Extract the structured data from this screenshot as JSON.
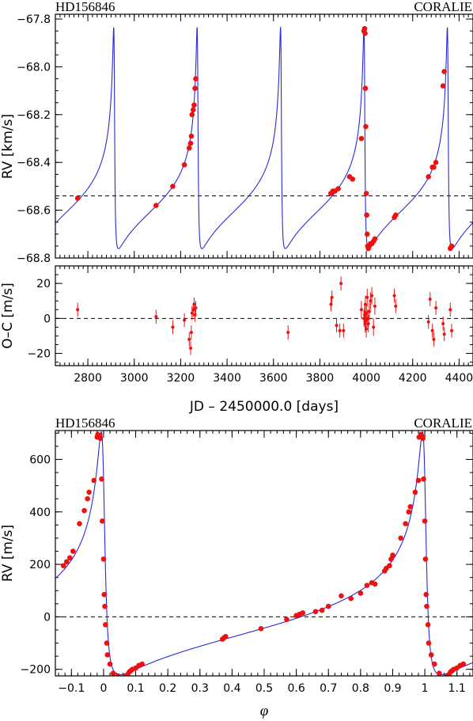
{
  "chart_data": [
    {
      "type": "line",
      "title_left": "HD156846",
      "title_right": "CORALIE",
      "xlabel": "",
      "ylabel": "RV [km/s]",
      "xlim": [
        2660,
        4460
      ],
      "ylim": [
        -68.8,
        -67.78
      ],
      "yticks": [
        -67.8,
        -68.0,
        -68.2,
        -68.4,
        -68.6,
        -68.8
      ],
      "yticklabels": [
        "−67.8",
        "−68.0",
        "−68.2",
        "−68.4",
        "−68.6",
        "−68.8"
      ],
      "reference_line": -68.54,
      "model": {
        "period": 359.5,
        "eccentricity": 0.85,
        "omega_deg": 52,
        "K": 0.463,
        "T0": 2914,
        "gamma": -68.54
      },
      "series": [
        {
          "x": [
            2756,
            3094,
            3166,
            3216,
            3237,
            3243,
            3246,
            3249,
            3254,
            3258,
            3262,
            3265,
            3847,
            3856,
            3865,
            3879,
            3928,
            3941,
            3979,
            3990,
            3993,
            3995,
            3996,
            3998,
            4000,
            4002,
            4004,
            4006,
            4009,
            4013,
            4018,
            4024,
            4031,
            4037,
            4121,
            4127,
            4268,
            4285,
            4291,
            4300,
            4331,
            4336,
            4362,
            4368
          ],
          "y": [
            -68.55,
            -68.58,
            -68.5,
            -68.41,
            -68.34,
            -68.32,
            -68.29,
            -68.2,
            -68.18,
            -68.16,
            -68.09,
            -68.05,
            -68.53,
            -68.52,
            -68.52,
            -68.51,
            -68.46,
            -68.47,
            -68.3,
            -67.85,
            -67.84,
            -67.86,
            -68.09,
            -68.25,
            -68.53,
            -68.62,
            -68.7,
            -68.75,
            -68.76,
            -68.75,
            -68.74,
            -68.74,
            -68.73,
            -68.72,
            -68.63,
            -68.62,
            -68.46,
            -68.42,
            -68.42,
            -68.4,
            -68.08,
            -68.02,
            -68.76,
            -68.75
          ]
        }
      ]
    },
    {
      "type": "scatter",
      "xlabel": "JD – 2450000.0 [days]",
      "ylabel": "O–C [m/s]",
      "xlim": [
        2660,
        4460
      ],
      "ylim": [
        -27,
        30
      ],
      "xticks": [
        2800,
        3000,
        3200,
        3400,
        3600,
        3800,
        4000,
        4200,
        4400
      ],
      "xticklabels": [
        "2800",
        "3000",
        "3200",
        "3400",
        "3600",
        "3800",
        "4000",
        "4200",
        "4400"
      ],
      "yticks": [
        20,
        0,
        -20
      ],
      "yticklabels": [
        "20",
        "0",
        "−20"
      ],
      "reference_line": 0,
      "series": [
        {
          "x": [
            2756,
            3094,
            3166,
            3216,
            3237,
            3243,
            3246,
            3249,
            3254,
            3258,
            3262,
            3265,
            3663,
            3848,
            3852,
            3872,
            3886,
            3891,
            3902,
            3979,
            3990,
            3993,
            3995,
            3996,
            3998,
            4000,
            4002,
            4004,
            4006,
            4009,
            4013,
            4018,
            4024,
            4031,
            4037,
            4121,
            4127,
            4268,
            4275,
            4285,
            4291,
            4300,
            4331,
            4336,
            4362,
            4368
          ],
          "y": [
            5,
            1,
            -5,
            -1,
            -12,
            -17,
            -8,
            3,
            5,
            8,
            2,
            6,
            -8,
            8,
            12,
            -4,
            -7,
            20,
            -7,
            5,
            0,
            2,
            -3,
            8,
            -1,
            -6,
            3,
            12,
            0,
            -3,
            4,
            10,
            13,
            -5,
            7,
            13,
            7,
            -2,
            11,
            -7,
            -12,
            6,
            -3,
            -9,
            5,
            -7
          ],
          "errors": [
            4,
            4,
            4,
            4,
            4,
            4,
            4,
            4,
            4,
            4,
            4,
            4,
            4,
            4,
            4,
            4,
            4,
            4,
            4,
            5,
            5,
            5,
            5,
            5,
            5,
            5,
            5,
            5,
            5,
            5,
            5,
            5,
            5,
            5,
            5,
            4,
            4,
            4,
            4,
            4,
            4,
            4,
            4,
            4,
            4,
            4
          ]
        }
      ]
    },
    {
      "type": "line",
      "title_left": "HD156846",
      "title_right": "CORALIE",
      "xlabel": "φ",
      "ylabel": "RV [m/s]",
      "xlim": [
        -0.15,
        1.15
      ],
      "ylim": [
        -225,
        710
      ],
      "xticks": [
        -0.1,
        0,
        0.1,
        0.2,
        0.3,
        0.4,
        0.5,
        0.6,
        0.7,
        0.8,
        0.9,
        1,
        1.1
      ],
      "xticklabels": [
        "−0.1",
        "0",
        "0.1",
        "0.2",
        "0.3",
        "0.4",
        "0.5",
        "0.6",
        "0.7",
        "0.8",
        "0.9",
        "1",
        "1.1"
      ],
      "yticks": [
        600,
        400,
        200,
        0,
        -200
      ],
      "yticklabels": [
        "600",
        "400",
        "200",
        "0",
        "−200"
      ],
      "reference_line": 0,
      "model": {
        "period": 1,
        "eccentricity": 0.85,
        "omega_deg": 52,
        "K": 463,
        "T0": 0,
        "gamma": 0
      },
      "series": [
        {
          "x": [
            -0.125,
            -0.115,
            -0.105,
            -0.095,
            -0.075,
            -0.06,
            -0.05,
            -0.045,
            -0.03,
            -0.02,
            -0.018,
            -0.012,
            -0.01,
            -0.006,
            -0.004,
            0.0,
            0.002,
            0.004,
            0.006,
            0.01,
            0.012,
            0.02,
            0.03,
            0.045,
            0.07,
            0.075,
            0.08,
            0.085,
            0.09,
            0.1,
            0.11,
            0.12,
            0.37,
            0.375,
            0.38,
            0.49,
            0.57,
            0.6,
            0.61,
            0.62,
            0.66,
            0.68,
            0.7,
            0.74,
            0.77,
            0.8,
            0.82,
            0.835,
            0.845,
            0.875,
            0.88,
            0.89,
            0.895,
            0.9,
            0.925,
            0.94,
            0.95,
            0.955,
            0.97,
            0.98,
            0.982,
            0.988,
            0.99,
            0.994,
            0.996,
            1.0,
            1.002,
            1.004,
            1.006,
            1.01,
            1.012,
            1.02,
            1.03,
            1.045,
            1.07,
            1.075,
            1.08,
            1.085,
            1.09,
            1.1,
            1.11,
            1.12
          ],
          "y": [
            195,
            210,
            225,
            250,
            355,
            405,
            450,
            475,
            520,
            685,
            695,
            690,
            680,
            525,
            365,
            220,
            85,
            40,
            -30,
            -100,
            -145,
            -180,
            -215,
            -225,
            -225,
            -220,
            -210,
            -205,
            -200,
            -195,
            -185,
            -180,
            -85,
            -80,
            -75,
            -45,
            -10,
            5,
            10,
            15,
            20,
            25,
            40,
            80,
            70,
            90,
            120,
            130,
            125,
            175,
            185,
            195,
            220,
            235,
            300,
            355,
            400,
            420,
            475,
            520,
            685,
            695,
            690,
            680,
            525,
            365,
            220,
            85,
            40,
            -30,
            -100,
            -145,
            -180,
            -215,
            -225,
            -220,
            -210,
            -205,
            -200,
            -195,
            -185,
            -180
          ]
        }
      ]
    }
  ]
}
